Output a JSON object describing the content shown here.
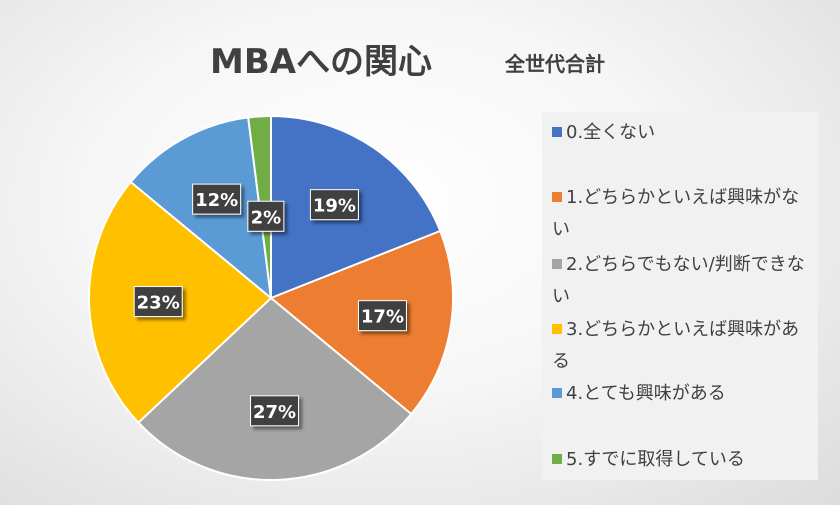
{
  "chart": {
    "title": "MBAへの関心",
    "subtitle": "全世代合計"
  },
  "chart_data": {
    "type": "pie",
    "title": "MBAへの関心",
    "subtitle": "全世代合計",
    "start_angle_deg": 0,
    "direction": "clockwise",
    "legend_position": "right",
    "slices": [
      {
        "label": "0.全くない",
        "value": 19,
        "display": "19%",
        "color": "#4472c4"
      },
      {
        "label": "1.どちらかといえば興味がない",
        "value": 17,
        "display": "17%",
        "color": "#ed7d31"
      },
      {
        "label": "2.どちらでもない/判断できない",
        "value": 27,
        "display": "27%",
        "color": "#a5a5a5"
      },
      {
        "label": "3.どちらかといえば興味がある",
        "value": 23,
        "display": "23%",
        "color": "#ffc000"
      },
      {
        "label": "4.とても興味がある",
        "value": 12,
        "display": "12%",
        "color": "#5b9bd5"
      },
      {
        "label": "5.すでに取得している",
        "value": 2,
        "display": "2%",
        "color": "#70ad47"
      }
    ]
  }
}
